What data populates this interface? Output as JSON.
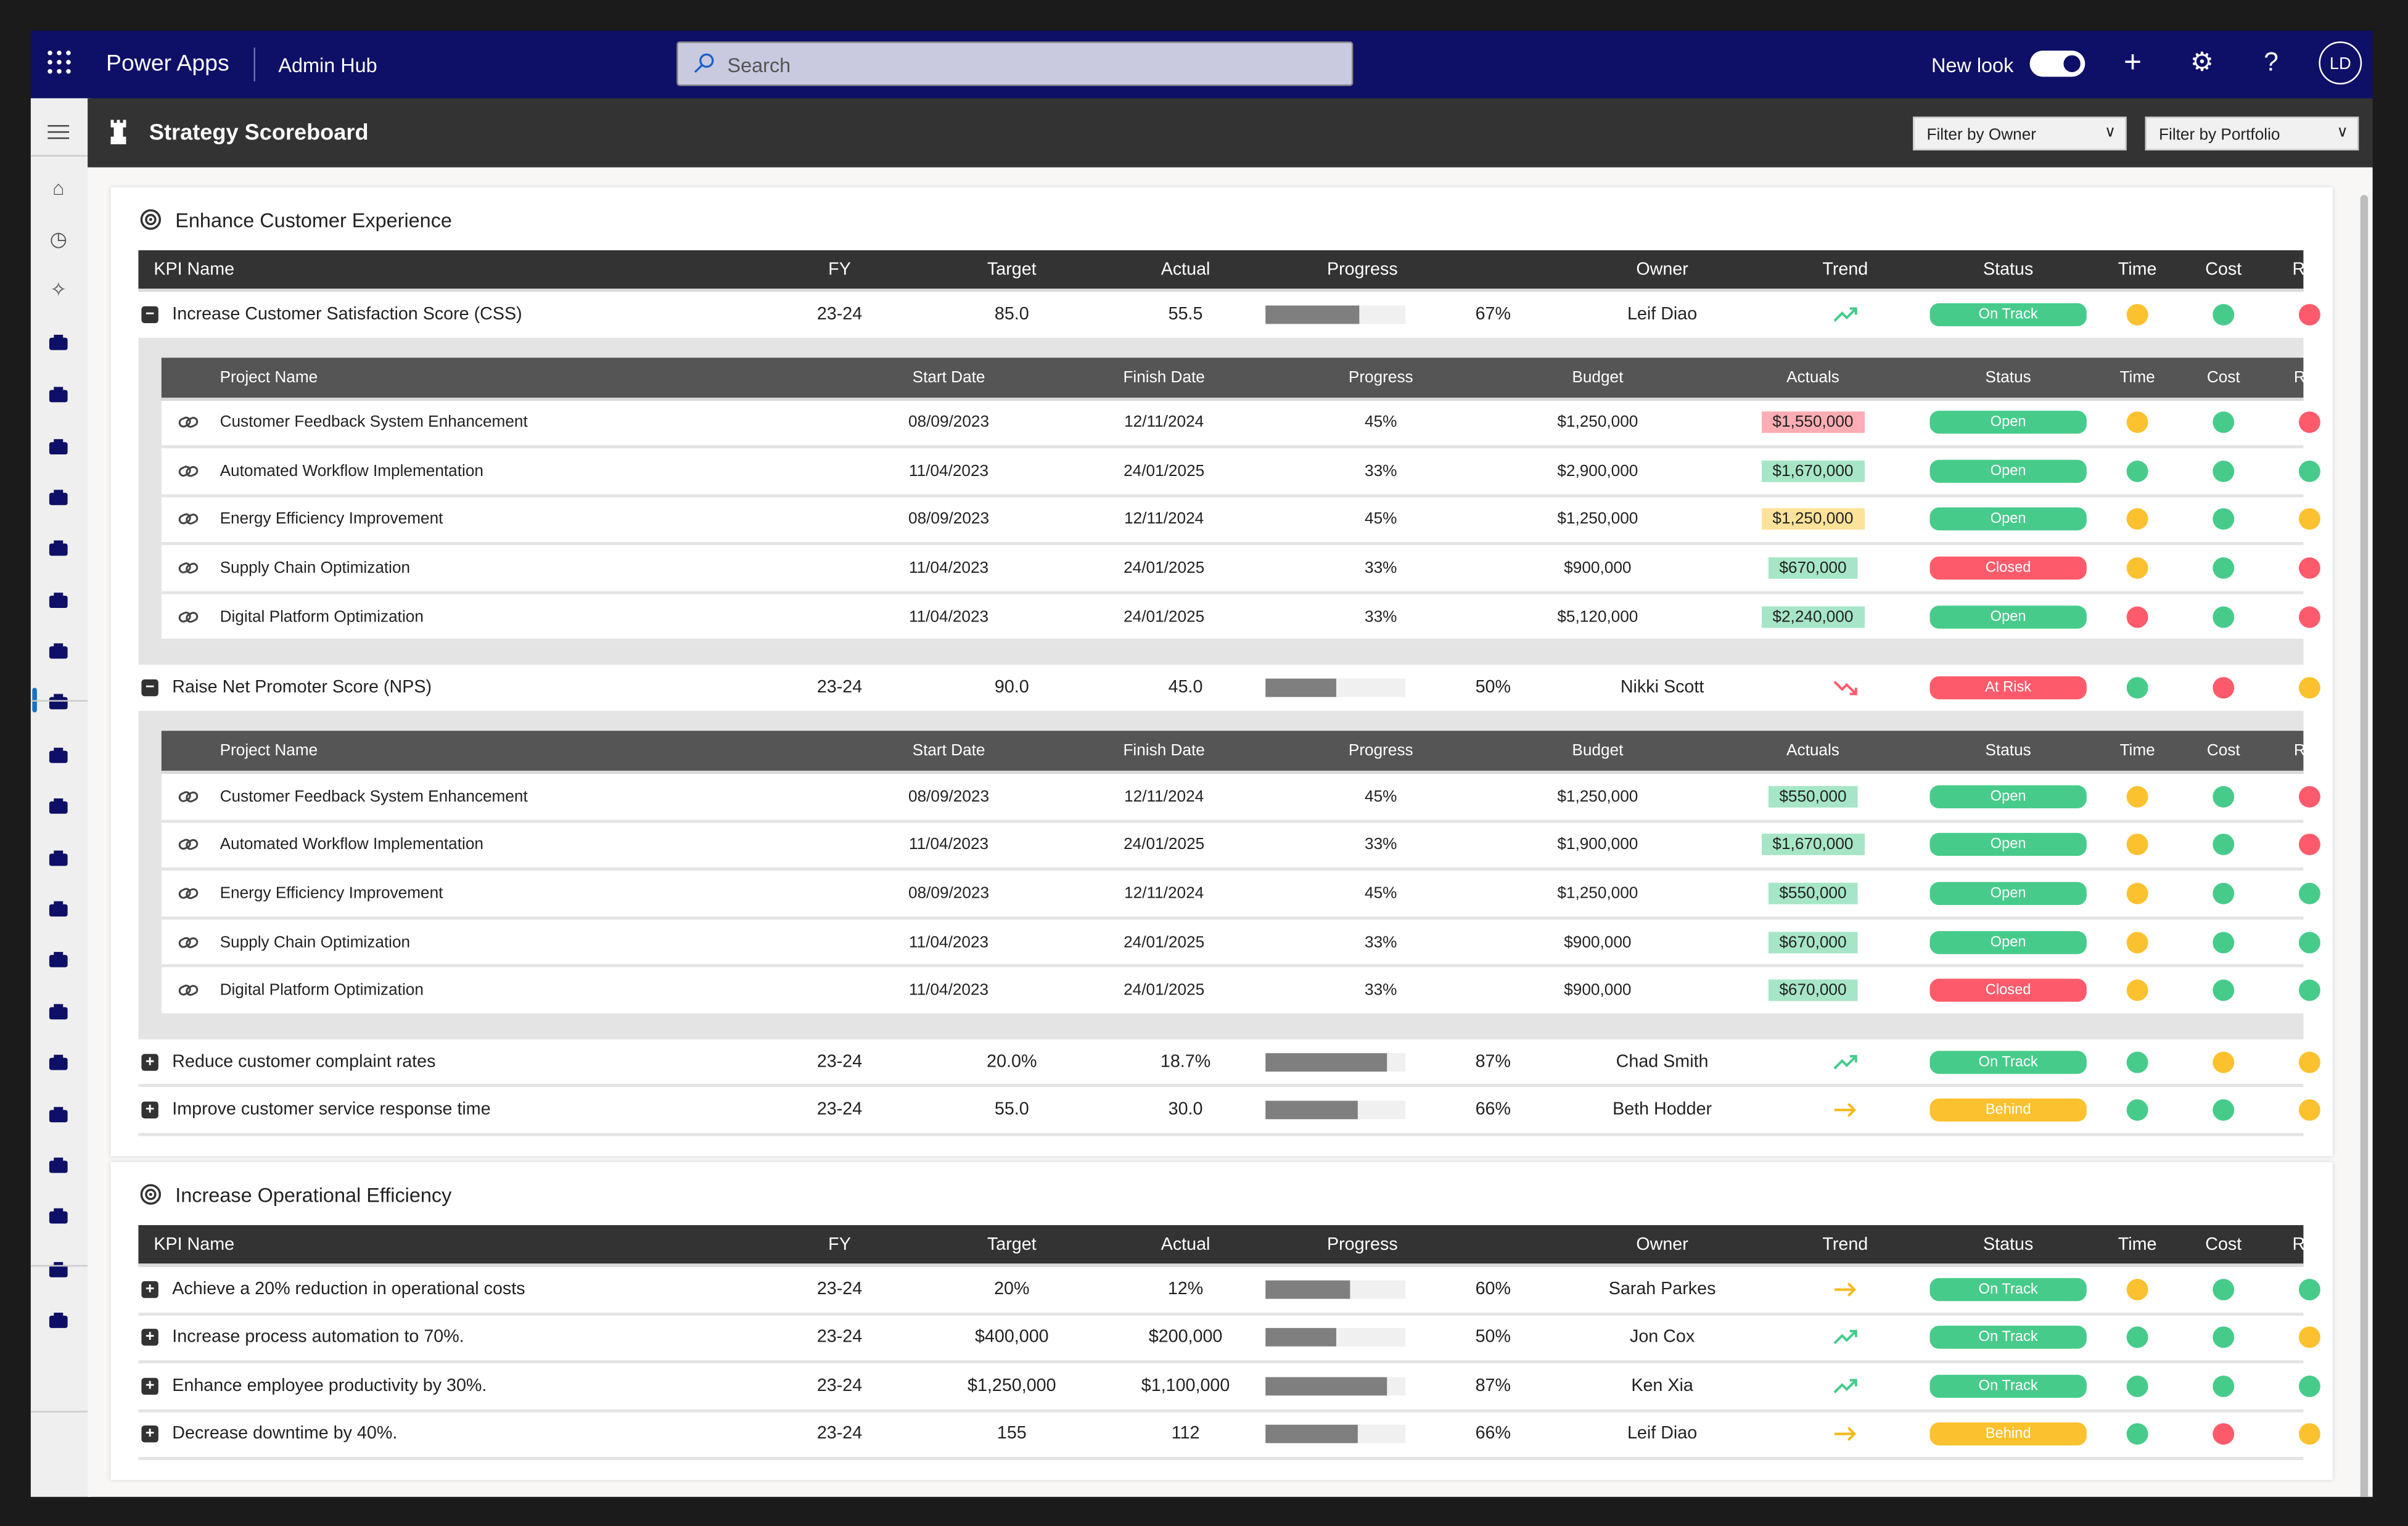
{
  "topbar": {
    "app_name": "Power Apps",
    "hub_name": "Admin Hub",
    "search_placeholder": "Search",
    "new_look_label": "New look",
    "new_look_on": true,
    "avatar_initials": "LD",
    "brand_color": "#0e0f66"
  },
  "sidebar": {
    "items": [
      "menu-icon",
      "home-icon",
      "recent-icon",
      "pin-icon",
      "inbox-icon",
      "contact-icon",
      "team-icon",
      "org-chart-icon",
      "group-icon",
      "user-icon",
      "task-icon",
      "dashboard-icon",
      "database-icon",
      "analytics-icon",
      "report-icon",
      "presentation-icon",
      "chat-icon",
      "mail-icon",
      "documents-icon",
      "list-icon",
      "settings-list-icon",
      "chart-icon",
      "upload-icon",
      "file-icon"
    ],
    "selected": "dashboard-icon"
  },
  "page": {
    "title": "Strategy Scoreboard",
    "filter_owner": "Filter by Owner",
    "filter_portfolio": "Filter by Portfolio"
  },
  "colors": {
    "green": "#47cb8b",
    "yellow": "#fcc12f",
    "red": "#fd5b6b",
    "chip_green": "#a6e6c6",
    "chip_yellow": "#fde39a",
    "chip_red": "#fdadb3"
  },
  "kpi_headers": [
    "KPI Name",
    "FY",
    "Target",
    "Actual",
    "Progress",
    "Owner",
    "Trend",
    "Status",
    "Time",
    "Cost",
    "Risk"
  ],
  "project_headers": [
    "Project Name",
    "Start Date",
    "Finish Date",
    "Progress",
    "Budget",
    "Actuals",
    "Status",
    "Time",
    "Cost",
    "Risk"
  ],
  "cards": [
    {
      "title": "Enhance Customer Experience",
      "kpis": [
        {
          "name": "Increase Customer Satisfaction Score (CSS)",
          "fy": "23-24",
          "target": "85.0",
          "actual": "55.5",
          "progress": 67,
          "owner": "Leif Diao",
          "trend": "up",
          "status": "On Track",
          "time": "yellow",
          "cost": "green",
          "risk": "red",
          "expanded": true,
          "projects": [
            {
              "name": "Customer Feedback System Enhancement",
              "start": "08/09/2023",
              "finish": "12/11/2024",
              "progress": "45%",
              "budget": "$1,250,000",
              "actuals": "$1,550,000",
              "actuals_flag": "red",
              "status": "Open",
              "time": "yellow",
              "cost": "green",
              "risk": "red"
            },
            {
              "name": "Automated Workflow Implementation",
              "start": "11/04/2023",
              "finish": "24/01/2025",
              "progress": "33%",
              "budget": "$2,900,000",
              "actuals": "$1,670,000",
              "actuals_flag": "green",
              "status": "Open",
              "time": "green",
              "cost": "green",
              "risk": "green"
            },
            {
              "name": "Energy Efficiency Improvement",
              "start": "08/09/2023",
              "finish": "12/11/2024",
              "progress": "45%",
              "budget": "$1,250,000",
              "actuals": "$1,250,000",
              "actuals_flag": "yellow",
              "status": "Open",
              "time": "yellow",
              "cost": "green",
              "risk": "yellow"
            },
            {
              "name": "Supply Chain Optimization",
              "start": "11/04/2023",
              "finish": "24/01/2025",
              "progress": "33%",
              "budget": "$900,000",
              "actuals": "$670,000",
              "actuals_flag": "green",
              "status": "Closed",
              "time": "yellow",
              "cost": "green",
              "risk": "red"
            },
            {
              "name": "Digital Platform Optimization",
              "start": "11/04/2023",
              "finish": "24/01/2025",
              "progress": "33%",
              "budget": "$5,120,000",
              "actuals": "$2,240,000",
              "actuals_flag": "green",
              "status": "Open",
              "time": "red",
              "cost": "green",
              "risk": "red"
            }
          ]
        },
        {
          "name": "Raise Net Promoter Score (NPS)",
          "fy": "23-24",
          "target": "90.0",
          "actual": "45.0",
          "progress": 50,
          "owner": "Nikki Scott",
          "trend": "down",
          "status": "At Risk",
          "time": "green",
          "cost": "red",
          "risk": "yellow",
          "expanded": true,
          "projects": [
            {
              "name": "Customer Feedback System Enhancement",
              "start": "08/09/2023",
              "finish": "12/11/2024",
              "progress": "45%",
              "budget": "$1,250,000",
              "actuals": "$550,000",
              "actuals_flag": "green",
              "status": "Open",
              "time": "yellow",
              "cost": "green",
              "risk": "red"
            },
            {
              "name": "Automated Workflow Implementation",
              "start": "11/04/2023",
              "finish": "24/01/2025",
              "progress": "33%",
              "budget": "$1,900,000",
              "actuals": "$1,670,000",
              "actuals_flag": "green",
              "status": "Open",
              "time": "yellow",
              "cost": "green",
              "risk": "red"
            },
            {
              "name": "Energy Efficiency Improvement",
              "start": "08/09/2023",
              "finish": "12/11/2024",
              "progress": "45%",
              "budget": "$1,250,000",
              "actuals": "$550,000",
              "actuals_flag": "green",
              "status": "Open",
              "time": "yellow",
              "cost": "green",
              "risk": "green"
            },
            {
              "name": "Supply Chain Optimization",
              "start": "11/04/2023",
              "finish": "24/01/2025",
              "progress": "33%",
              "budget": "$900,000",
              "actuals": "$670,000",
              "actuals_flag": "green",
              "status": "Open",
              "time": "yellow",
              "cost": "green",
              "risk": "green"
            },
            {
              "name": "Digital Platform Optimization",
              "start": "11/04/2023",
              "finish": "24/01/2025",
              "progress": "33%",
              "budget": "$900,000",
              "actuals": "$670,000",
              "actuals_flag": "green",
              "status": "Closed",
              "time": "yellow",
              "cost": "green",
              "risk": "green"
            }
          ]
        },
        {
          "name": "Reduce customer complaint rates",
          "fy": "23-24",
          "target": "20.0%",
          "actual": "18.7%",
          "progress": 87,
          "owner": "Chad Smith",
          "trend": "up",
          "status": "On Track",
          "time": "green",
          "cost": "yellow",
          "risk": "yellow",
          "expanded": false
        },
        {
          "name": "Improve customer service response time",
          "fy": "23-24",
          "target": "55.0",
          "actual": "30.0",
          "progress": 66,
          "owner": "Beth Hodder",
          "trend": "flat",
          "status": "Behind",
          "time": "green",
          "cost": "green",
          "risk": "yellow",
          "expanded": false
        }
      ]
    },
    {
      "title": "Increase Operational Efficiency",
      "kpis": [
        {
          "name": "Achieve a 20% reduction in operational costs",
          "fy": "23-24",
          "target": "20%",
          "actual": "12%",
          "progress": 60,
          "owner": "Sarah Parkes",
          "trend": "flat",
          "status": "On Track",
          "time": "yellow",
          "cost": "green",
          "risk": "green",
          "expanded": false
        },
        {
          "name": "Increase process automation to 70%.",
          "fy": "23-24",
          "target": "$400,000",
          "actual": "$200,000",
          "progress": 50,
          "owner": "Jon Cox",
          "trend": "up",
          "status": "On Track",
          "time": "green",
          "cost": "green",
          "risk": "yellow",
          "expanded": false
        },
        {
          "name": "Enhance employee productivity by 30%.",
          "fy": "23-24",
          "target": "$1,250,000",
          "actual": "$1,100,000",
          "progress": 87,
          "owner": "Ken Xia",
          "trend": "up",
          "status": "On Track",
          "time": "green",
          "cost": "green",
          "risk": "green",
          "expanded": false
        },
        {
          "name": "Decrease downtime by 40%.",
          "fy": "23-24",
          "target": "155",
          "actual": "112",
          "progress": 66,
          "owner": "Leif Diao",
          "trend": "flat",
          "status": "Behind",
          "time": "green",
          "cost": "red",
          "risk": "yellow",
          "expanded": false
        }
      ]
    }
  ]
}
